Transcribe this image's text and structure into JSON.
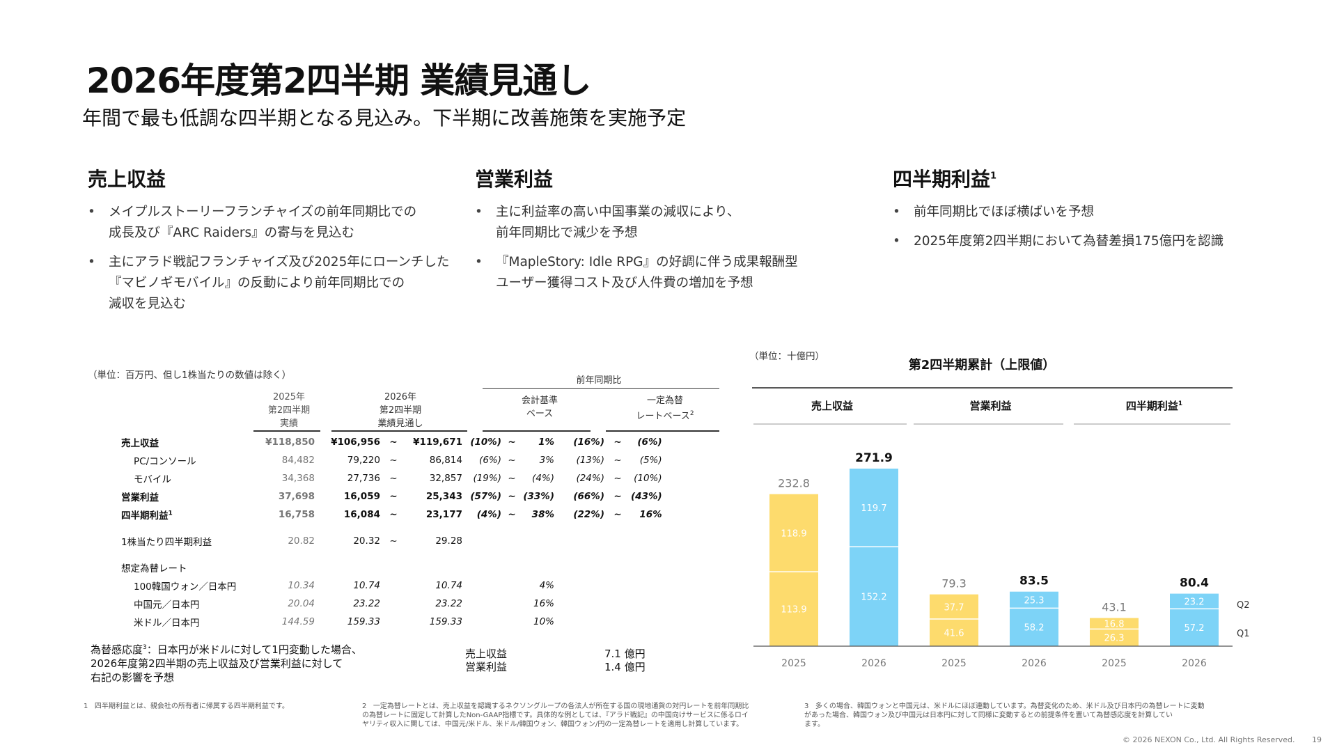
{
  "title": "2026年度第2四半期 業績見通し",
  "subtitle": "年間で最も低調な四半期となる見込み。下半期に改善施策を実施予定",
  "sections": [
    {
      "title": "売上収益",
      "sup": "",
      "bullets": [
        "メイプルストーリーフランチャイズの前年同期比での\n成長及び『ARC Raiders』の寄与を見込む",
        "主にアラド戦記フランチャイズ及び2025年にローンチした\n『マビノギモバイル』の反動により前年同期比での\n減収を見込む"
      ]
    },
    {
      "title": "営業利益",
      "sup": "",
      "bullets": [
        "主に利益率の高い中国事業の減収により、\n前年同期比で減少を予想",
        "『MapleStory: Idle RPG』の好調に伴う成果報酬型\nユーザー獲得コスト及び人件費の増加を予想"
      ]
    },
    {
      "title": "四半期利益",
      "sup": "1",
      "bullets": [
        "前年同期比でほぼ横ばいを予想",
        "2025年度第2四半期において為替差損175億円を認識"
      ]
    }
  ],
  "table": {
    "unit_note": "（単位：百万円、但し1株当たりの数値は除く）",
    "headers": {
      "col_2025": "2025年\n第2四半期\n実績",
      "col_2026": "2026年\n第2四半期\n業績見通し",
      "yoy": "前年同期比",
      "yoy_accounting": "会計基準\nベース",
      "yoy_constant": "一定為替\nレートベース",
      "yoy_constant_sup": "2"
    },
    "tilde": "~",
    "rows": [
      {
        "label": "売上収益",
        "sup": "",
        "v2025": "¥118,850",
        "low": "¥106,956",
        "high": "¥119,671",
        "acc_low": "(10%)",
        "acc_high": "1%",
        "cur_low": "(16%)",
        "cur_high": "(6%)",
        "bold": true,
        "indent": false
      },
      {
        "label": "PC/コンソール",
        "sup": "",
        "v2025": "84,482",
        "low": "79,220",
        "high": "86,814",
        "acc_low": "(6%)",
        "acc_high": "3%",
        "cur_low": "(13%)",
        "cur_high": "(5%)",
        "bold": false,
        "indent": true
      },
      {
        "label": "モバイル",
        "sup": "",
        "v2025": "34,368",
        "low": "27,736",
        "high": "32,857",
        "acc_low": "(19%)",
        "acc_high": "(4%)",
        "cur_low": "(24%)",
        "cur_high": "(10%)",
        "bold": false,
        "indent": true
      },
      {
        "label": "営業利益",
        "sup": "",
        "v2025": "37,698",
        "low": "16,059",
        "high": "25,343",
        "acc_low": "(57%)",
        "acc_high": "(33%)",
        "cur_low": "(66%)",
        "cur_high": "(43%)",
        "bold": true,
        "indent": false
      },
      {
        "label": "四半期利益",
        "sup": "1",
        "v2025": "16,758",
        "low": "16,084",
        "high": "23,177",
        "acc_low": "(4%)",
        "acc_high": "38%",
        "cur_low": "(22%)",
        "cur_high": "16%",
        "bold": true,
        "indent": false
      }
    ],
    "eps": {
      "label": "1株当たり四半期利益",
      "v2025": "20.82",
      "low": "20.32",
      "high": "29.28"
    },
    "fx_title": "想定為替レート",
    "fx_rows": [
      {
        "label": "100韓国ウォン／日本円",
        "v2025": "10.34",
        "low": "10.74",
        "high": "10.74",
        "acc": "4%"
      },
      {
        "label": "中国元／日本円",
        "v2025": "20.04",
        "low": "23.22",
        "high": "23.22",
        "acc": "16%"
      },
      {
        "label": "米ドル／日本円",
        "v2025": "144.59",
        "low": "159.33",
        "high": "159.33",
        "acc": "10%"
      }
    ]
  },
  "sensitivity": {
    "text_pre": "為替感応度",
    "text_sup": "3",
    "text_main": "：日本円が米ドルに対して1円変動した場合、",
    "text_line2": "2026年度第2四半期の売上収益及び営業利益に対して",
    "text_line3": "右記の影響を予想",
    "items": [
      {
        "label": "売上収益",
        "value": "7.1 億円"
      },
      {
        "label": "営業利益",
        "value": "1.4 億円"
      }
    ]
  },
  "chart_data": {
    "type": "bar",
    "title": "第2四半期累計（上限値）",
    "unit_note": "（単位：十億円）",
    "ylim": [
      0,
      271.9
    ],
    "stack_labels": {
      "q2": "Q2",
      "q1": "Q1"
    },
    "groups": [
      {
        "name": "売上収益",
        "sup": "",
        "bars": [
          {
            "year": "2025",
            "q1": 113.9,
            "q2": 118.9,
            "total": "232.8",
            "q1_label": "113.9",
            "q2_label": "118.9"
          },
          {
            "year": "2026",
            "q1": 152.2,
            "q2": 119.7,
            "total": "271.9",
            "q1_label": "152.2",
            "q2_label": "119.7"
          }
        ]
      },
      {
        "name": "営業利益",
        "sup": "",
        "bars": [
          {
            "year": "2025",
            "q1": 41.6,
            "q2": 37.7,
            "total": "79.3",
            "q1_label": "41.6",
            "q2_label": "37.7"
          },
          {
            "year": "2026",
            "q1": 58.2,
            "q2": 25.3,
            "total": "83.5",
            "q1_label": "58.2",
            "q2_label": "25.3"
          }
        ]
      },
      {
        "name": "四半期利益",
        "sup": "1",
        "bars": [
          {
            "year": "2025",
            "q1": 26.3,
            "q2": 16.8,
            "total": "43.1",
            "q1_label": "26.3",
            "q2_label": "16.8"
          },
          {
            "year": "2026",
            "q1": 57.2,
            "q2": 23.2,
            "total": "80.4",
            "q1_label": "57.2",
            "q2_label": "23.2"
          }
        ]
      }
    ],
    "colors": {
      "y2025": "#FDDB6D",
      "y2026": "#7DD3F7"
    }
  },
  "footnotes": [
    {
      "num": "1",
      "text": "四半期利益とは、親会社の所有者に帰属する四半期利益です。"
    },
    {
      "num": "2",
      "text": "一定為替レートとは、売上収益を認識するネクソングループの各法人が所在する国の現地通貨の対円レートを前年同期比\nの為替レートに固定して計算したNon-GAAP指標です。具体的な例としては、『アラド戦記』の中国向けサービスに係るロイ\nヤリティ収入に関しては、中国元/米ドル、米ドル/韓国ウォン、韓国ウォン/円の一定為替レートを適用し計算しています。"
    },
    {
      "num": "3",
      "text": "多くの場合、韓国ウォンと中国元は、米ドルにほぼ連動しています。為替変化のため、米ドル及び日本円の為替レートに変動\nがあった場合、韓国ウォン及び中国元は日本円に対して同様に変動するとの前提条件を置いて為替感応度を計算してい\nます。"
    }
  ],
  "copyright": "© 2026 NEXON Co., Ltd. All Rights Reserved.",
  "page_number": "19"
}
